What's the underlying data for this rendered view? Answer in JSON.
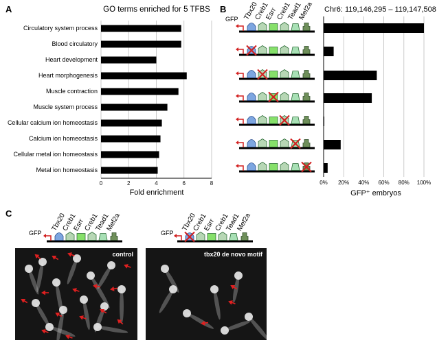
{
  "panels": {
    "a": "A",
    "b": "B",
    "c": "C"
  },
  "panel_a": {
    "title": "GO terms enriched for 5 TFBS",
    "xlabel": "Fold enrichment"
  },
  "panel_b": {
    "title": "Chr6: 119,146,295 – 119,147,508",
    "xlabel": "GFP⁺ embryos",
    "gfp_label": "GFP",
    "tf_labels": [
      "Tbx20",
      "Creb1",
      "Esrr",
      "Creb1",
      "Tead1",
      "Mef2a"
    ]
  },
  "panel_c": {
    "gfp_label": "GFP",
    "tf_labels": [
      "Tbx20",
      "Creb1",
      "Esrr",
      "Creb1",
      "Tead1",
      "Mef2a"
    ],
    "left_photo_label": "control",
    "right_photo_label": "tbx20 de novo motif"
  },
  "chart_data": [
    {
      "type": "bar",
      "orientation": "horizontal",
      "title": "GO terms enriched for 5 TFBS",
      "xlabel": "Fold enrichment",
      "categories": [
        "Circulatory system process",
        "Blood circulatory",
        "Heart development",
        "Heart morphogenesis",
        "Muscle contraction",
        "Muscle system process",
        "Cellular calcium ion homeostasis",
        "Calcium ion homeostasis",
        "Cellular metal ion homeostasis",
        "Metal ion homeostasis"
      ],
      "values": [
        5.8,
        5.8,
        4.0,
        6.2,
        5.6,
        4.8,
        4.4,
        4.3,
        4.2,
        4.1
      ],
      "xlim": [
        0,
        8
      ],
      "xticks": [
        "0",
        "2",
        "4",
        "6",
        "8"
      ],
      "grid": true
    },
    {
      "type": "bar",
      "orientation": "horizontal",
      "title": "Chr6: 119,146,295 – 119,147,508",
      "xlabel": "GFP⁺ embryos",
      "categories": [
        "wild type",
        "Tbx20 mutated",
        "Creb1 mutated",
        "Esrr mutated",
        "Creb1 (2nd) mutated",
        "Tead1 mutated",
        "Mef2a mutated"
      ],
      "mutated_site": [
        -1,
        0,
        1,
        2,
        3,
        4,
        5
      ],
      "values": [
        100,
        10,
        53,
        48,
        0.5,
        17,
        4
      ],
      "xlim": [
        0,
        100
      ],
      "xticks": [
        "0%",
        "20%",
        "40%",
        "60%",
        "80%",
        "100%"
      ],
      "grid": true
    }
  ]
}
